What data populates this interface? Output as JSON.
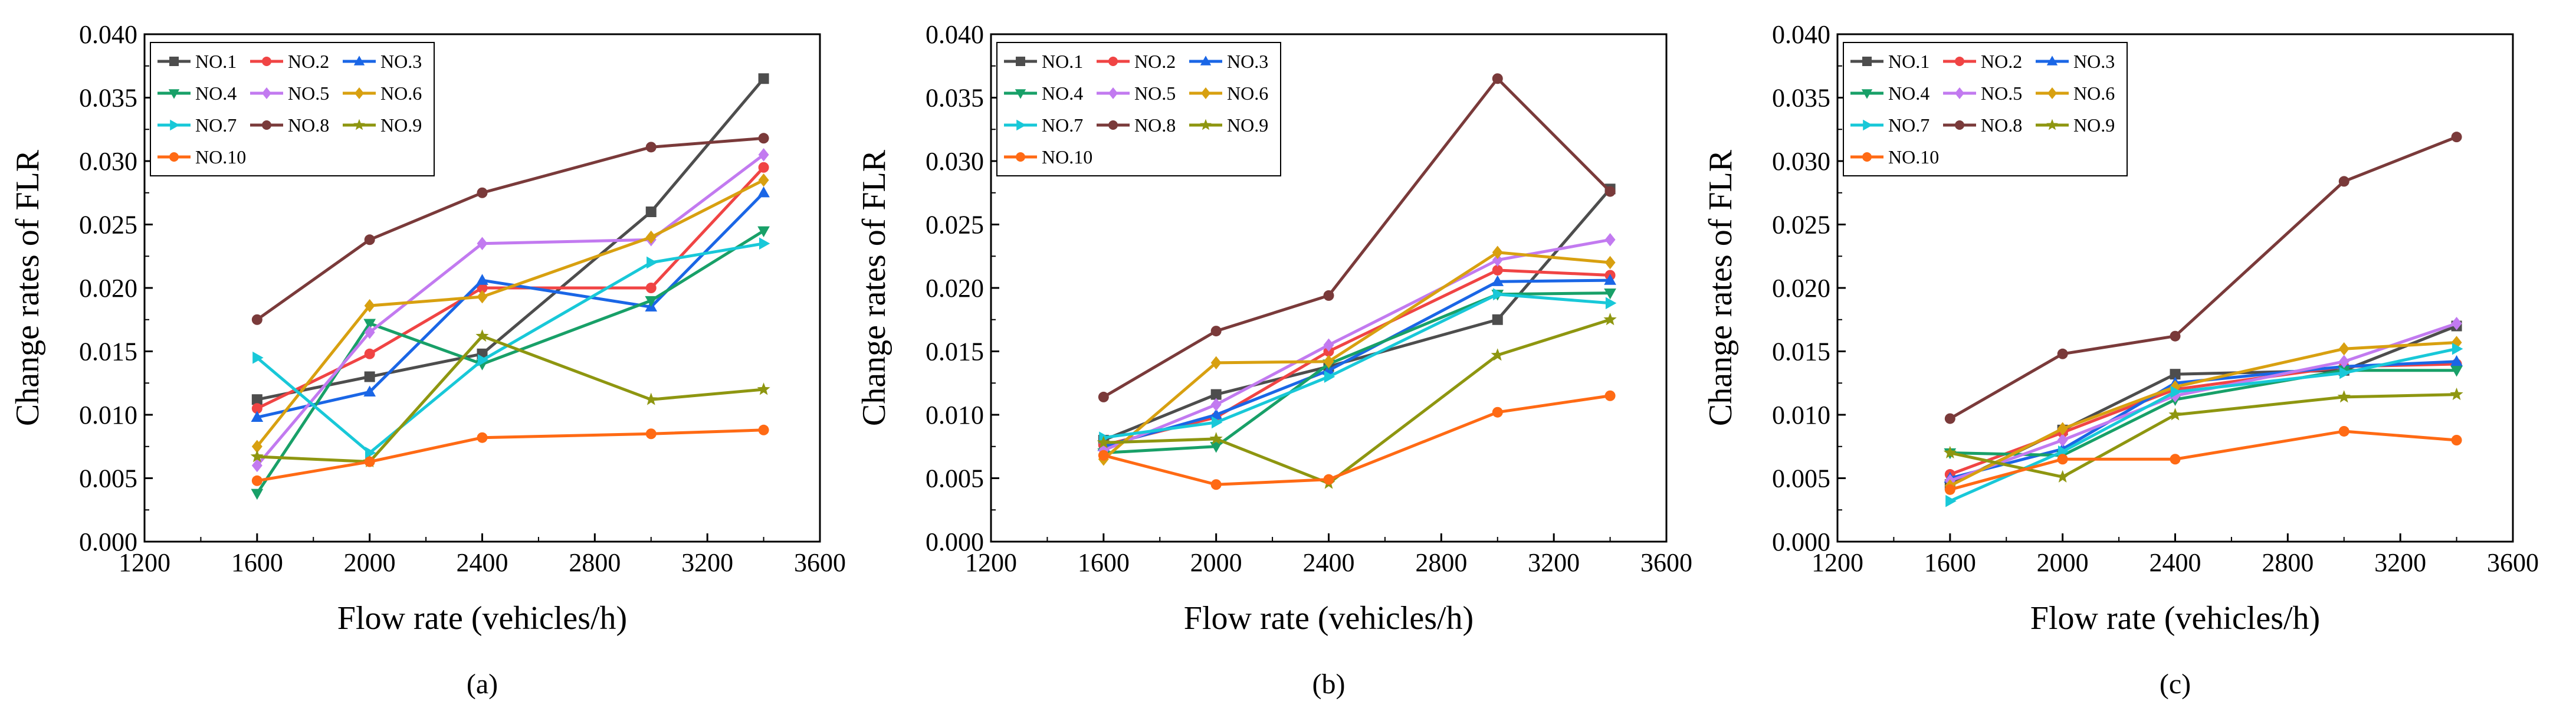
{
  "colors": {
    "series": [
      "#4d4d4d",
      "#f04444",
      "#1a66e6",
      "#18a068",
      "#c27af0",
      "#d8a010",
      "#18c8d8",
      "#7a3a3a",
      "#8e9610",
      "#ff6a14"
    ]
  },
  "chart_data": [
    {
      "type": "line",
      "panel_label": "(a)",
      "xlabel": "Flow rate (vehicles/h)",
      "ylabel": "Change rates of FLR",
      "xlim": [
        1200,
        3600
      ],
      "ylim": [
        0.0,
        0.04
      ],
      "xticks": [
        "1200",
        "1600",
        "2000",
        "2400",
        "2800",
        "3200",
        "3600"
      ],
      "yticks": [
        "0.000",
        "0.005",
        "0.010",
        "0.015",
        "0.020",
        "0.025",
        "0.030",
        "0.035",
        "0.040"
      ],
      "legend": "top-left",
      "x": [
        1600,
        2000,
        2400,
        3000,
        3400
      ],
      "series": [
        {
          "name": "NO.1",
          "values": [
            0.0112,
            0.013,
            0.0148,
            0.026,
            0.0365
          ]
        },
        {
          "name": "NO.2",
          "values": [
            0.0105,
            0.0148,
            0.02,
            0.02,
            0.0295
          ]
        },
        {
          "name": "NO.3",
          "values": [
            0.0098,
            0.0118,
            0.0206,
            0.0185,
            0.0275
          ]
        },
        {
          "name": "NO.4",
          "values": [
            0.0038,
            0.0172,
            0.014,
            0.019,
            0.0245
          ]
        },
        {
          "name": "NO.5",
          "values": [
            0.006,
            0.0165,
            0.0235,
            0.0238,
            0.0305
          ]
        },
        {
          "name": "NO.6",
          "values": [
            0.0075,
            0.0186,
            0.0193,
            0.024,
            0.0285
          ]
        },
        {
          "name": "NO.7",
          "values": [
            0.0145,
            0.007,
            0.0143,
            0.022,
            0.0235
          ]
        },
        {
          "name": "NO.8",
          "values": [
            0.0175,
            0.0238,
            0.0275,
            0.0311,
            0.0318
          ]
        },
        {
          "name": "NO.9",
          "values": [
            0.0067,
            0.0063,
            0.0162,
            0.0112,
            0.012
          ]
        },
        {
          "name": "NO.10",
          "values": [
            0.0048,
            0.0063,
            0.0082,
            0.0085,
            0.0088
          ]
        }
      ]
    },
    {
      "type": "line",
      "panel_label": "(b)",
      "xlabel": "Flow rate (vehicles/h)",
      "ylabel": "Change rates of FLR",
      "xlim": [
        1200,
        3600
      ],
      "ylim": [
        0.0,
        0.04
      ],
      "xticks": [
        "1200",
        "1600",
        "2000",
        "2400",
        "2800",
        "3200",
        "3600"
      ],
      "yticks": [
        "0.000",
        "0.005",
        "0.010",
        "0.015",
        "0.020",
        "0.025",
        "0.030",
        "0.035",
        "0.040"
      ],
      "legend": "top-left",
      "x": [
        1600,
        2000,
        2400,
        3000,
        3400
      ],
      "series": [
        {
          "name": "NO.1",
          "values": [
            0.008,
            0.0116,
            0.0138,
            0.0175,
            0.0278
          ]
        },
        {
          "name": "NO.2",
          "values": [
            0.0076,
            0.0098,
            0.015,
            0.0214,
            0.021
          ]
        },
        {
          "name": "NO.3",
          "values": [
            0.0075,
            0.01,
            0.0135,
            0.0205,
            0.0206
          ]
        },
        {
          "name": "NO.4",
          "values": [
            0.007,
            0.0075,
            0.014,
            0.0195,
            0.0196
          ]
        },
        {
          "name": "NO.5",
          "values": [
            0.0072,
            0.0108,
            0.0155,
            0.0222,
            0.0238
          ]
        },
        {
          "name": "NO.6",
          "values": [
            0.0065,
            0.0141,
            0.0142,
            0.0228,
            0.022
          ]
        },
        {
          "name": "NO.7",
          "values": [
            0.0082,
            0.0094,
            0.013,
            0.0195,
            0.0188
          ]
        },
        {
          "name": "NO.8",
          "values": [
            0.0114,
            0.0166,
            0.0194,
            0.0365,
            0.0276
          ]
        },
        {
          "name": "NO.9",
          "values": [
            0.0078,
            0.0081,
            0.0046,
            0.0147,
            0.0175
          ]
        },
        {
          "name": "NO.10",
          "values": [
            0.0068,
            0.0045,
            0.0049,
            0.0102,
            0.0115
          ]
        }
      ]
    },
    {
      "type": "line",
      "panel_label": "(c)",
      "xlabel": "Flow rate (vehicles/h)",
      "ylabel": "Change rates of FLR",
      "xlim": [
        1200,
        3600
      ],
      "ylim": [
        0.0,
        0.04
      ],
      "xticks": [
        "1200",
        "1600",
        "2000",
        "2400",
        "2800",
        "3200",
        "3600"
      ],
      "yticks": [
        "0.000",
        "0.005",
        "0.010",
        "0.015",
        "0.020",
        "0.025",
        "0.030",
        "0.035",
        "0.040"
      ],
      "legend": "top-left",
      "x": [
        1600,
        2000,
        2400,
        3000,
        3400
      ],
      "series": [
        {
          "name": "NO.1",
          "values": [
            0.0045,
            0.0088,
            0.0132,
            0.0135,
            0.017
          ]
        },
        {
          "name": "NO.2",
          "values": [
            0.0053,
            0.0086,
            0.012,
            0.0138,
            0.014
          ]
        },
        {
          "name": "NO.3",
          "values": [
            0.005,
            0.0073,
            0.0125,
            0.0138,
            0.0142
          ]
        },
        {
          "name": "NO.4",
          "values": [
            0.007,
            0.0068,
            0.0112,
            0.0135,
            0.0135
          ]
        },
        {
          "name": "NO.5",
          "values": [
            0.0048,
            0.008,
            0.0115,
            0.0142,
            0.0172
          ]
        },
        {
          "name": "NO.6",
          "values": [
            0.0044,
            0.0089,
            0.0122,
            0.0152,
            0.0157
          ]
        },
        {
          "name": "NO.7",
          "values": [
            0.0032,
            0.0071,
            0.0118,
            0.0133,
            0.0152
          ]
        },
        {
          "name": "NO.8",
          "values": [
            0.0097,
            0.0148,
            0.0162,
            0.0284,
            0.0319
          ]
        },
        {
          "name": "NO.9",
          "values": [
            0.007,
            0.0051,
            0.01,
            0.0114,
            0.0116
          ]
        },
        {
          "name": "NO.10",
          "values": [
            0.0041,
            0.0065,
            0.0065,
            0.0087,
            0.008
          ]
        }
      ]
    }
  ]
}
